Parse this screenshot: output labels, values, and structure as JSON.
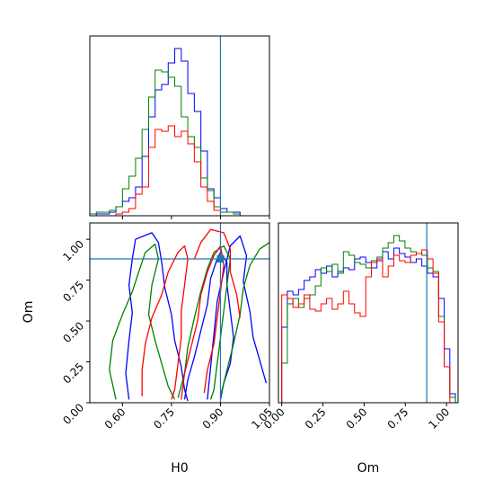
{
  "chart_data": {
    "type": "corner",
    "params": [
      "H0",
      "Om"
    ],
    "truths": {
      "H0": 0.9,
      "Om": 0.88
    },
    "colors": {
      "blue": "#0000ff",
      "green": "#008000",
      "red": "#ff0000",
      "truth": "#1f77b4"
    },
    "panels": [
      {
        "id": "hist-H0",
        "type": "histogram",
        "param": "H0",
        "xlim": [
          0.5,
          1.05
        ],
        "ylim": [
          0,
          1.0
        ],
        "x_ticks": [],
        "y_ticks": [],
        "series": [
          {
            "name": "",
            "color": "blue",
            "x_start": 0.5,
            "bin_width": 0.02,
            "values": [
              0.0,
              0.01,
              0.01,
              0.02,
              0.05,
              0.08,
              0.1,
              0.16,
              0.33,
              0.55,
              0.7,
              0.73,
              0.85,
              0.93,
              0.86,
              0.68,
              0.58,
              0.36,
              0.15,
              0.1,
              0.04,
              0.02,
              0.02,
              0.0
            ]
          },
          {
            "name": "",
            "color": "green",
            "x_start": 0.5,
            "bin_width": 0.02,
            "values": [
              0.01,
              0.02,
              0.02,
              0.03,
              0.05,
              0.15,
              0.22,
              0.32,
              0.48,
              0.66,
              0.81,
              0.8,
              0.77,
              0.72,
              0.55,
              0.44,
              0.38,
              0.21,
              0.14,
              0.05,
              0.02,
              0.02,
              0.01,
              0.0
            ]
          },
          {
            "name": "",
            "color": "red",
            "x_start": 0.5,
            "bin_width": 0.02,
            "values": [
              0.0,
              0.0,
              0.0,
              0.0,
              0.01,
              0.02,
              0.04,
              0.12,
              0.16,
              0.38,
              0.48,
              0.47,
              0.5,
              0.44,
              0.47,
              0.4,
              0.3,
              0.16,
              0.08,
              0.03,
              0.0,
              0.0,
              0.0,
              0.0
            ]
          }
        ]
      },
      {
        "id": "hist-Om",
        "type": "histogram",
        "param": "Om",
        "xlim": [
          -0.02,
          1.07
        ],
        "ylim": [
          0,
          1.0
        ],
        "x_ticks": [
          "0.00",
          "0.25",
          "0.50",
          "0.75",
          "1.00"
        ],
        "x_tick_values": [
          0.0,
          0.25,
          0.5,
          0.75,
          1.0
        ],
        "xlabel": "Om",
        "y_ticks": [],
        "series": [
          {
            "name": "",
            "color": "blue",
            "x_start": 0.0,
            "bin_width": 0.034,
            "values": [
              0.42,
              0.62,
              0.6,
              0.63,
              0.68,
              0.7,
              0.74,
              0.72,
              0.76,
              0.7,
              0.73,
              0.75,
              0.74,
              0.8,
              0.81,
              0.78,
              0.75,
              0.79,
              0.84,
              0.8,
              0.86,
              0.83,
              0.81,
              0.78,
              0.8,
              0.76,
              0.72,
              0.7,
              0.58,
              0.3,
              0.05
            ]
          },
          {
            "name": "",
            "color": "green",
            "x_start": 0.0,
            "bin_width": 0.034,
            "values": [
              0.22,
              0.55,
              0.58,
              0.53,
              0.58,
              0.6,
              0.65,
              0.75,
              0.73,
              0.77,
              0.72,
              0.84,
              0.82,
              0.78,
              0.77,
              0.75,
              0.79,
              0.81,
              0.86,
              0.89,
              0.93,
              0.9,
              0.86,
              0.84,
              0.83,
              0.82,
              0.75,
              0.73,
              0.48,
              0.2,
              0.03
            ]
          },
          {
            "name": "",
            "color": "red",
            "x_start": 0.0,
            "bin_width": 0.034,
            "values": [
              0.6,
              0.58,
              0.53,
              0.55,
              0.6,
              0.52,
              0.51,
              0.55,
              0.58,
              0.52,
              0.55,
              0.62,
              0.55,
              0.5,
              0.48,
              0.7,
              0.78,
              0.8,
              0.7,
              0.76,
              0.82,
              0.79,
              0.78,
              0.82,
              0.83,
              0.85,
              0.8,
              0.72,
              0.45,
              0.2,
              0.0
            ]
          }
        ]
      },
      {
        "id": "contour-H0-Om",
        "type": "contour",
        "xlim": [
          0.5,
          1.05
        ],
        "ylim": [
          0.0,
          1.1
        ],
        "x_ticks": [
          "0.60",
          "0.75",
          "0.90",
          "1.05"
        ],
        "x_tick_values": [
          0.6,
          0.75,
          0.9,
          1.05
        ],
        "y_ticks": [
          "0.00",
          "0.25",
          "0.50",
          "0.75",
          "1.00"
        ],
        "y_tick_values": [
          0.0,
          0.25,
          0.5,
          0.75,
          1.0
        ],
        "xlabel": "H0",
        "ylabel": "Om",
        "contours": [
          {
            "color": "blue",
            "points": [
              [
                0.62,
                0.02
              ],
              [
                0.61,
                0.18
              ],
              [
                0.62,
                0.38
              ],
              [
                0.63,
                0.55
              ],
              [
                0.62,
                0.72
              ],
              [
                0.63,
                0.88
              ],
              [
                0.64,
                1.0
              ],
              [
                0.69,
                1.04
              ],
              [
                0.71,
                0.98
              ],
              [
                0.72,
                0.86
              ],
              [
                0.73,
                0.7
              ],
              [
                0.75,
                0.54
              ],
              [
                0.76,
                0.38
              ],
              [
                0.78,
                0.22
              ],
              [
                0.79,
                0.08
              ],
              [
                0.8,
                0.01
              ]
            ]
          },
          {
            "color": "blue",
            "points": [
              [
                0.79,
                0.02
              ],
              [
                0.8,
                0.14
              ],
              [
                0.82,
                0.28
              ],
              [
                0.84,
                0.44
              ],
              [
                0.86,
                0.6
              ],
              [
                0.87,
                0.76
              ],
              [
                0.89,
                0.88
              ],
              [
                0.9,
                0.92
              ],
              [
                0.92,
                0.86
              ],
              [
                0.92,
                0.72
              ],
              [
                0.93,
                0.56
              ],
              [
                0.94,
                0.4
              ],
              [
                0.93,
                0.24
              ],
              [
                0.91,
                0.12
              ],
              [
                0.9,
                0.02
              ]
            ]
          },
          {
            "color": "blue",
            "points": [
              [
                0.86,
                0.02
              ],
              [
                0.87,
                0.22
              ],
              [
                0.88,
                0.42
              ],
              [
                0.89,
                0.62
              ],
              [
                0.91,
                0.8
              ],
              [
                0.93,
                0.96
              ],
              [
                0.96,
                1.02
              ],
              [
                0.98,
                0.9
              ],
              [
                0.97,
                0.74
              ],
              [
                0.99,
                0.56
              ],
              [
                1.0,
                0.4
              ],
              [
                1.02,
                0.26
              ],
              [
                1.04,
                0.12
              ]
            ]
          },
          {
            "color": "green",
            "points": [
              [
                0.58,
                0.02
              ],
              [
                0.56,
                0.2
              ],
              [
                0.57,
                0.38
              ],
              [
                0.6,
                0.54
              ],
              [
                0.63,
                0.68
              ],
              [
                0.65,
                0.8
              ],
              [
                0.67,
                0.92
              ],
              [
                0.7,
                0.97
              ],
              [
                0.71,
                0.88
              ],
              [
                0.69,
                0.72
              ],
              [
                0.68,
                0.54
              ],
              [
                0.7,
                0.38
              ],
              [
                0.72,
                0.24
              ],
              [
                0.74,
                0.1
              ],
              [
                0.76,
                0.02
              ]
            ]
          },
          {
            "color": "green",
            "points": [
              [
                0.77,
                0.03
              ],
              [
                0.79,
                0.18
              ],
              [
                0.8,
                0.34
              ],
              [
                0.82,
                0.52
              ],
              [
                0.84,
                0.68
              ],
              [
                0.86,
                0.82
              ],
              [
                0.88,
                0.92
              ],
              [
                0.91,
                0.96
              ],
              [
                0.93,
                0.88
              ],
              [
                0.92,
                0.72
              ],
              [
                0.91,
                0.56
              ],
              [
                0.9,
                0.4
              ],
              [
                0.89,
                0.24
              ],
              [
                0.88,
                0.08
              ],
              [
                0.87,
                0.02
              ]
            ]
          },
          {
            "color": "green",
            "points": [
              [
                0.9,
                0.04
              ],
              [
                0.92,
                0.2
              ],
              [
                0.94,
                0.36
              ],
              [
                0.96,
                0.54
              ],
              [
                0.97,
                0.7
              ],
              [
                0.99,
                0.84
              ],
              [
                1.02,
                0.94
              ],
              [
                1.05,
                0.98
              ]
            ]
          },
          {
            "color": "red",
            "points": [
              [
                0.66,
                0.04
              ],
              [
                0.66,
                0.2
              ],
              [
                0.67,
                0.36
              ],
              [
                0.69,
                0.52
              ],
              [
                0.72,
                0.66
              ],
              [
                0.74,
                0.8
              ],
              [
                0.77,
                0.92
              ],
              [
                0.79,
                0.96
              ],
              [
                0.8,
                0.88
              ],
              [
                0.79,
                0.72
              ],
              [
                0.78,
                0.56
              ],
              [
                0.78,
                0.4
              ],
              [
                0.77,
                0.24
              ],
              [
                0.76,
                0.08
              ],
              [
                0.75,
                0.02
              ]
            ]
          },
          {
            "color": "red",
            "points": [
              [
                0.78,
                0.02
              ],
              [
                0.79,
                0.18
              ],
              [
                0.81,
                0.34
              ],
              [
                0.83,
                0.5
              ],
              [
                0.84,
                0.66
              ],
              [
                0.86,
                0.8
              ],
              [
                0.88,
                0.9
              ],
              [
                0.9,
                0.96
              ],
              [
                0.91,
                0.84
              ],
              [
                0.9,
                0.68
              ],
              [
                0.89,
                0.52
              ],
              [
                0.88,
                0.36
              ],
              [
                0.86,
                0.2
              ],
              [
                0.85,
                0.06
              ]
            ]
          },
          {
            "color": "red",
            "points": [
              [
                0.82,
                0.88
              ],
              [
                0.84,
                0.98
              ],
              [
                0.87,
                1.06
              ],
              [
                0.91,
                1.04
              ],
              [
                0.93,
                0.94
              ],
              [
                0.93,
                0.8
              ],
              [
                0.95,
                0.66
              ],
              [
                0.96,
                0.52
              ]
            ]
          }
        ]
      }
    ]
  }
}
